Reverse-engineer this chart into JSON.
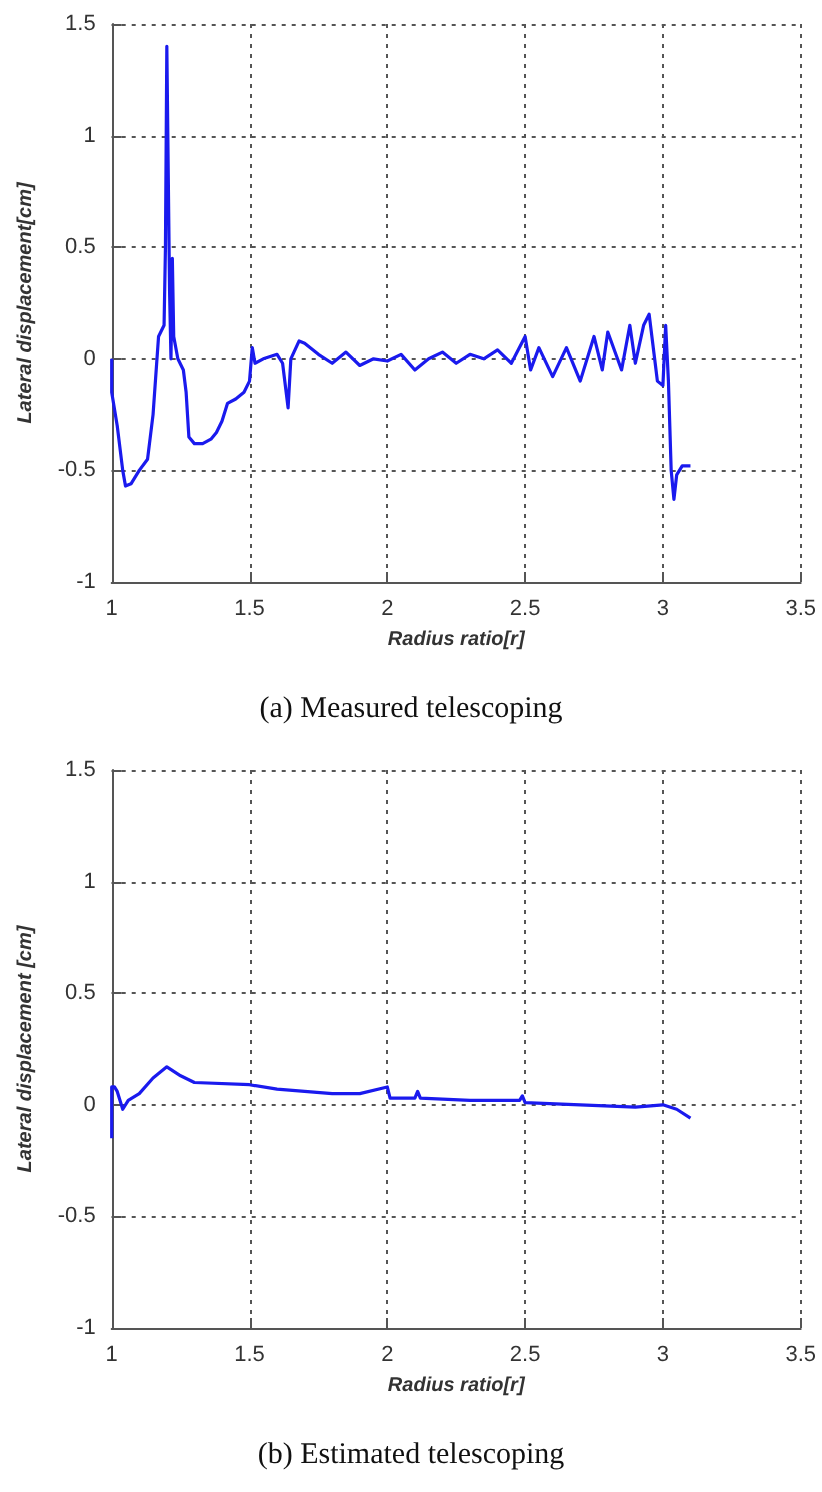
{
  "chart_data": [
    {
      "type": "line",
      "title": "(a) Measured telescoping",
      "xlabel": "Radius ratio[r]",
      "ylabel": "Lateral displacement[cm]",
      "xlim": [
        1,
        3.5
      ],
      "xticks": [
        1,
        1.5,
        2,
        2.5,
        3,
        3.5
      ],
      "ylim": [
        -1,
        1.5
      ],
      "yticks": [
        -1,
        -0.5,
        0,
        0.5,
        1,
        1.5
      ],
      "grid": true,
      "line_style": "solid",
      "series": [
        {
          "color": "#1a1aee",
          "x": [
            1.0,
            1.0,
            1.02,
            1.04,
            1.05,
            1.07,
            1.1,
            1.13,
            1.15,
            1.17,
            1.19,
            1.195,
            1.2,
            1.205,
            1.21,
            1.215,
            1.22,
            1.225,
            1.24,
            1.26,
            1.27,
            1.28,
            1.3,
            1.33,
            1.36,
            1.38,
            1.4,
            1.42,
            1.45,
            1.48,
            1.5,
            1.51,
            1.52,
            1.55,
            1.6,
            1.62,
            1.64,
            1.65,
            1.68,
            1.7,
            1.75,
            1.8,
            1.85,
            1.9,
            1.95,
            2.0,
            2.05,
            2.1,
            2.15,
            2.2,
            2.25,
            2.3,
            2.35,
            2.4,
            2.45,
            2.5,
            2.52,
            2.55,
            2.6,
            2.65,
            2.7,
            2.75,
            2.78,
            2.8,
            2.85,
            2.88,
            2.9,
            2.93,
            2.95,
            2.97,
            2.98,
            3.0,
            3.01,
            3.02,
            3.03,
            3.04,
            3.05,
            3.07,
            3.1
          ],
          "values": [
            0.0,
            -0.15,
            -0.3,
            -0.5,
            -0.57,
            -0.56,
            -0.5,
            -0.45,
            -0.25,
            0.1,
            0.15,
            0.5,
            1.4,
            1.4,
            0.3,
            0.0,
            0.45,
            0.1,
            0.0,
            -0.05,
            -0.15,
            -0.35,
            -0.38,
            -0.38,
            -0.36,
            -0.33,
            -0.28,
            -0.2,
            -0.18,
            -0.15,
            -0.1,
            0.05,
            -0.02,
            0.0,
            0.02,
            -0.02,
            -0.22,
            0.0,
            0.08,
            0.07,
            0.02,
            -0.02,
            0.03,
            -0.03,
            0.0,
            -0.01,
            0.02,
            -0.05,
            0.0,
            0.03,
            -0.02,
            0.02,
            0.0,
            0.04,
            -0.02,
            0.1,
            -0.05,
            0.05,
            -0.08,
            0.05,
            -0.1,
            0.1,
            -0.05,
            0.12,
            -0.05,
            0.15,
            -0.02,
            0.15,
            0.2,
            0.0,
            -0.1,
            -0.12,
            0.15,
            -0.1,
            -0.5,
            -0.63,
            -0.52,
            -0.48,
            -0.48
          ]
        }
      ]
    },
    {
      "type": "line",
      "title": "(b) Estimated telescoping",
      "xlabel": "Radius ratio[r]",
      "ylabel": "Lateral displacement [cm]",
      "xlim": [
        1,
        3.5
      ],
      "xticks": [
        1,
        1.5,
        2,
        2.5,
        3,
        3.5
      ],
      "ylim": [
        -1,
        1.5
      ],
      "yticks": [
        -1,
        -0.5,
        0,
        0.5,
        1,
        1.5
      ],
      "grid": true,
      "line_style": "solid",
      "series": [
        {
          "color": "#1a1aee",
          "x": [
            1.0,
            1.0,
            1.01,
            1.02,
            1.04,
            1.06,
            1.1,
            1.15,
            1.2,
            1.25,
            1.3,
            1.5,
            1.6,
            1.8,
            1.9,
            2.0,
            2.01,
            2.1,
            2.11,
            2.12,
            2.3,
            2.48,
            2.49,
            2.5,
            2.7,
            2.9,
            3.0,
            3.05,
            3.1
          ],
          "values": [
            -0.15,
            0.08,
            0.08,
            0.06,
            -0.02,
            0.02,
            0.05,
            0.12,
            0.17,
            0.13,
            0.1,
            0.09,
            0.07,
            0.05,
            0.05,
            0.08,
            0.03,
            0.03,
            0.06,
            0.03,
            0.02,
            0.02,
            0.04,
            0.01,
            0.0,
            -0.01,
            0.0,
            -0.02,
            -0.06
          ]
        }
      ]
    }
  ]
}
